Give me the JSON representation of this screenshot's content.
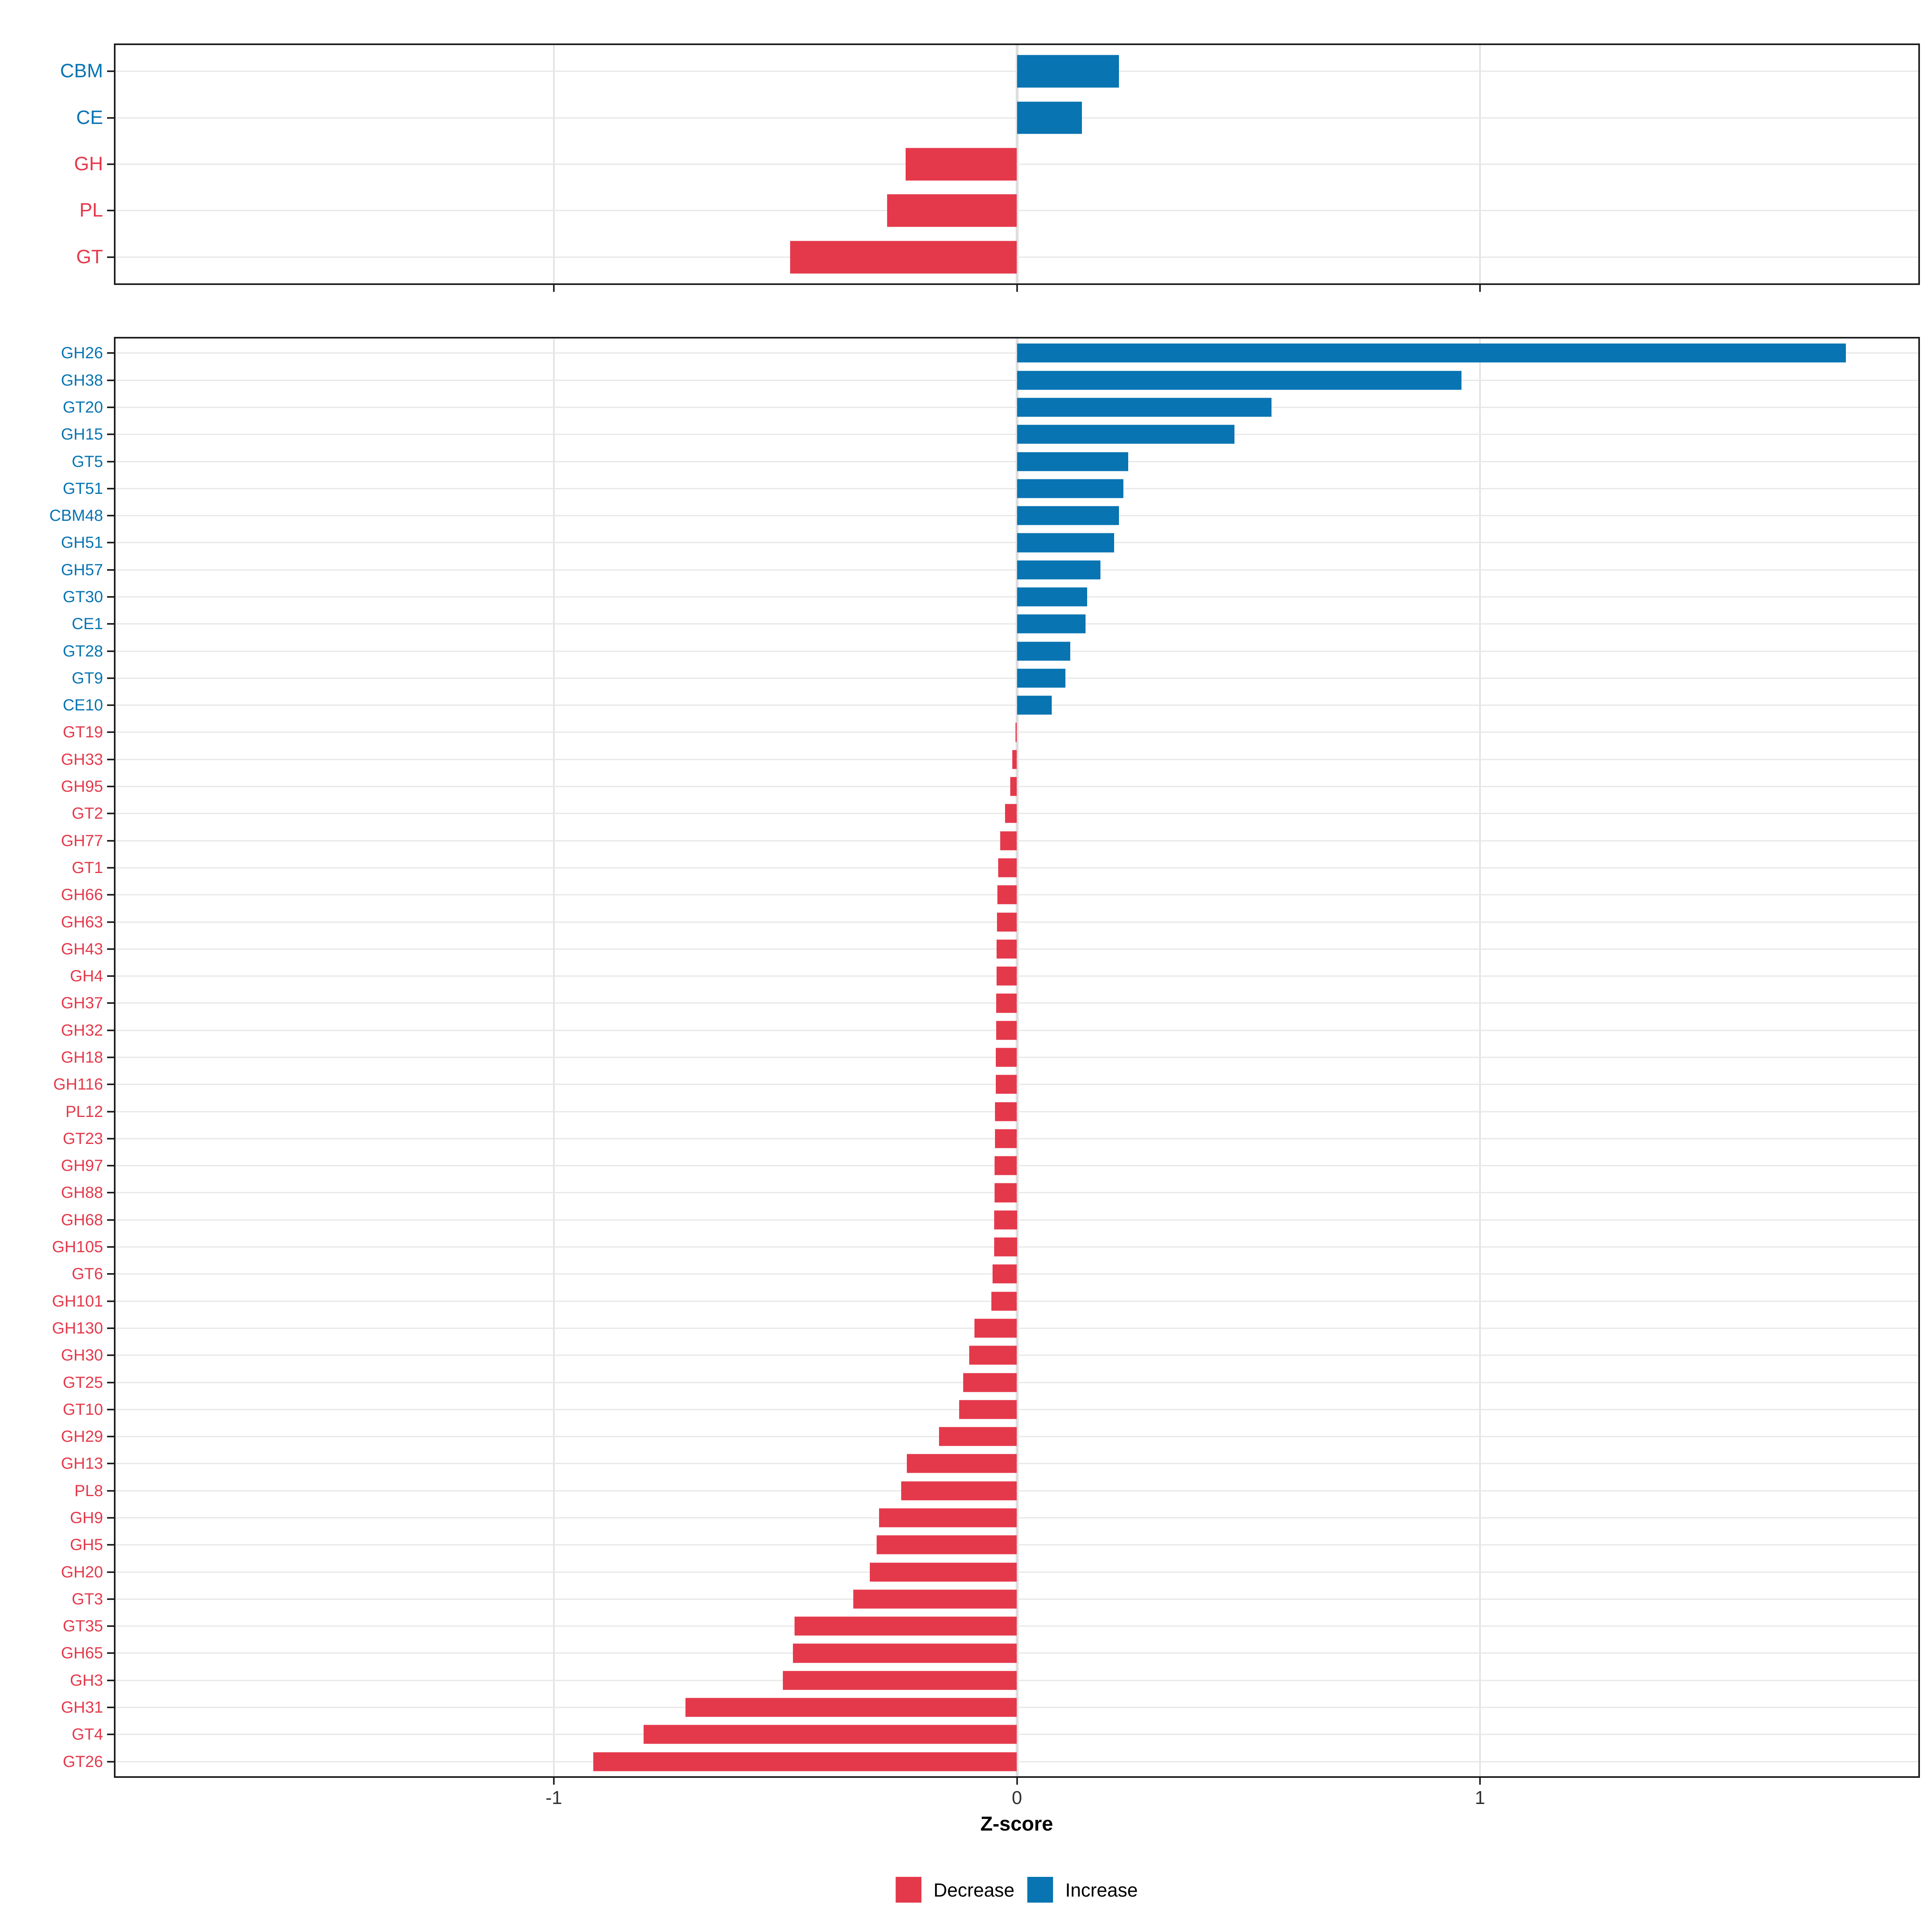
{
  "figure": {
    "xlabel": "Z-score"
  },
  "axis": {
    "domain": [
      -1.95,
      1.95
    ],
    "ticks": [
      {
        "value": -1,
        "label": "-1"
      },
      {
        "value": 0,
        "label": "0"
      },
      {
        "value": 1,
        "label": "1"
      }
    ]
  },
  "colors": {
    "decrease": "#E4394B",
    "increase": "#0874B2",
    "grid": "#E5E5E5",
    "panel_border": "#1B1B1B",
    "axis_text": "#303030"
  },
  "legend": {
    "items": [
      {
        "label": "Decrease",
        "color": "#E4394B"
      },
      {
        "label": "Increase",
        "color": "#0874B2"
      }
    ]
  },
  "chart_data": [
    {
      "id": "families",
      "type": "bar",
      "orientation": "horizontal",
      "title": "",
      "xlabel": "Z-score",
      "xlim": [
        -1.95,
        1.95
      ],
      "x_ticks": [
        -1,
        0,
        1
      ],
      "grid": true,
      "legend_position": "none",
      "categories": [
        "CBM",
        "CE",
        "GH",
        "PL",
        "GT"
      ],
      "values": [
        0.22,
        0.14,
        -0.24,
        -0.28,
        -0.49
      ]
    },
    {
      "id": "subfamilies",
      "type": "bar",
      "orientation": "horizontal",
      "title": "",
      "xlabel": "Z-score",
      "xlim": [
        -1.95,
        1.95
      ],
      "x_ticks": [
        -1,
        0,
        1
      ],
      "grid": true,
      "legend_position": "bottom",
      "categories": [
        "GH26",
        "GH38",
        "GT20",
        "GH15",
        "GT5",
        "GT51",
        "CBM48",
        "GH51",
        "GH57",
        "GT30",
        "CE1",
        "GT28",
        "GT9",
        "CE10",
        "GT19",
        "GH33",
        "GH95",
        "GT2",
        "GH77",
        "GT1",
        "GH66",
        "GH63",
        "GH43",
        "GH4",
        "GH37",
        "GH32",
        "GH18",
        "GH116",
        "PL12",
        "GT23",
        "GH97",
        "GH88",
        "GH68",
        "GH105",
        "GT6",
        "GH101",
        "GH130",
        "GH30",
        "GT25",
        "GT10",
        "GH29",
        "GH13",
        "PL8",
        "GH9",
        "GH5",
        "GH20",
        "GT3",
        "GT35",
        "GH65",
        "GH3",
        "GH31",
        "GT4",
        "GT26"
      ],
      "values": [
        1.79,
        0.96,
        0.55,
        0.47,
        0.24,
        0.23,
        0.22,
        0.21,
        0.18,
        0.152,
        0.148,
        0.115,
        0.105,
        0.075,
        -0.003,
        -0.01,
        -0.014,
        -0.026,
        -0.036,
        -0.04,
        -0.042,
        -0.043,
        -0.044,
        -0.044,
        -0.045,
        -0.045,
        -0.046,
        -0.046,
        -0.047,
        -0.047,
        -0.048,
        -0.048,
        -0.049,
        -0.049,
        -0.053,
        -0.055,
        -0.092,
        -0.103,
        -0.116,
        -0.125,
        -0.168,
        -0.238,
        -0.25,
        -0.298,
        -0.303,
        -0.318,
        -0.353,
        -0.48,
        -0.484,
        -0.505,
        -0.716,
        -0.806,
        -0.915
      ]
    }
  ]
}
